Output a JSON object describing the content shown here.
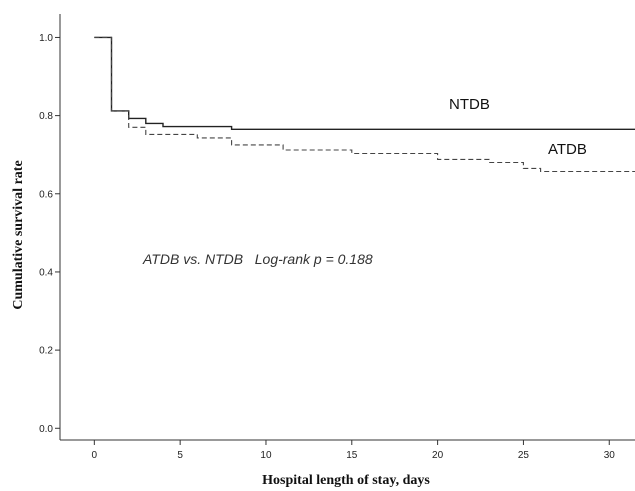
{
  "chart_data": {
    "type": "line",
    "title": "",
    "xlabel": "Hospital length of stay, days",
    "ylabel": "Cumulative survival rate",
    "xlim": [
      -2,
      31.5
    ],
    "ylim": [
      -0.03,
      1.06
    ],
    "xticks": [
      0,
      5,
      10,
      15,
      20,
      25,
      30
    ],
    "yticks": [
      0.0,
      0.2,
      0.4,
      0.6,
      0.8,
      1.0
    ],
    "ytick_labels": [
      "0.0",
      "0.2",
      "0.4",
      "0.6",
      "0.8",
      "1.0"
    ],
    "grid": false,
    "annotation": "ATDB vs. NTDB   Log-rank p = 0.188",
    "series": [
      {
        "name": "NTDB",
        "style": "solid",
        "color": "#222222",
        "x": [
          0,
          1,
          2,
          3,
          4,
          8,
          31.5
        ],
        "y": [
          1.0,
          0.812,
          0.793,
          0.78,
          0.772,
          0.765,
          0.765
        ]
      },
      {
        "name": "ATDB",
        "style": "dashed",
        "color": "#444444",
        "x": [
          0,
          1,
          2,
          3,
          6,
          8,
          11,
          15,
          20,
          23,
          25,
          26,
          31.5
        ],
        "y": [
          1.0,
          0.812,
          0.77,
          0.752,
          0.743,
          0.725,
          0.712,
          0.703,
          0.688,
          0.68,
          0.665,
          0.657,
          0.657
        ]
      }
    ]
  }
}
